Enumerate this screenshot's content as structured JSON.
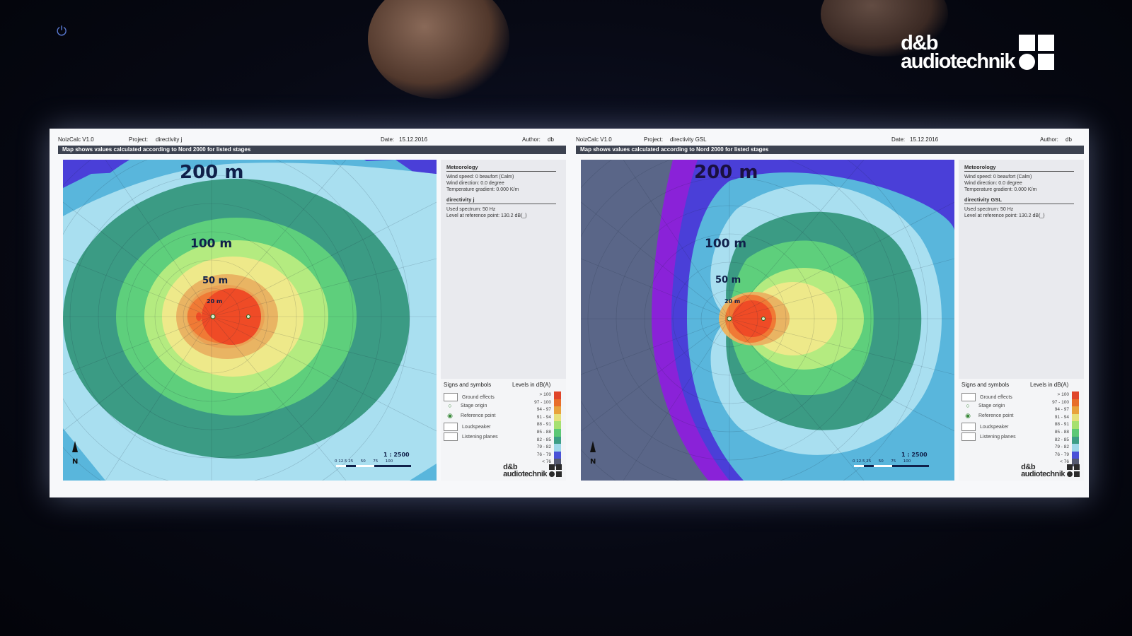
{
  "brand": {
    "line1": "d&b",
    "line2": "audiotechnik"
  },
  "sheets": [
    {
      "app": "NoizCalc V1.0",
      "project_label": "Project:",
      "project": "directivity j",
      "date_label": "Date:",
      "date": "15.12.2016",
      "author_label": "Author:",
      "author": "db",
      "banner": "Map shows values calculated according to Nord 2000 for listed stages",
      "map": {
        "label_200": "200 m",
        "label_100": "100 m",
        "label_50": "50 m",
        "label_20": "20 m",
        "scale_ratio": "1 : 2500",
        "scale_ticks": "0 12.5 25      50      75      100",
        "scale_unit": "m",
        "north": "N"
      },
      "meteorology": {
        "title": "Meteorology",
        "wind_speed": "Wind speed:  0 beaufort (Calm)",
        "wind_direction": "Wind direction:  0.0 degree",
        "temp_gradient": "Temperature gradient:  0.000 K/m"
      },
      "stage": {
        "title": "directivity j",
        "spectrum": "Used spectrum:  50 Hz",
        "level": "Level at reference point:  130.2 dB(_)"
      }
    },
    {
      "app": "NoizCalc V1.0",
      "project_label": "Project:",
      "project": "directivity GSL",
      "date_label": "Date:",
      "date": "15.12.2016",
      "author_label": "Author:",
      "author": "db",
      "banner": "Map shows values calculated according to Nord 2000 for listed stages",
      "map": {
        "label_200": "200 m",
        "label_100": "100 m",
        "label_50": "50 m",
        "label_20": "20 m",
        "scale_ratio": "1 : 2500",
        "scale_ticks": "0 12.5 25      50      75      100",
        "scale_unit": "m",
        "north": "N"
      },
      "meteorology": {
        "title": "Meteorology",
        "wind_speed": "Wind speed:  0 beaufort (Calm)",
        "wind_direction": "Wind direction:  0.0 degree",
        "temp_gradient": "Temperature gradient:  0.000 K/m"
      },
      "stage": {
        "title": "directivity GSL",
        "spectrum": "Used spectrum:  50 Hz",
        "level": "Level at reference point:  130.2 dB(_)"
      }
    }
  ],
  "signs": {
    "title": "Signs and symbols",
    "items": [
      "Ground effects",
      "Stage origin",
      "Reference point",
      "Loudspeaker",
      "Listening planes"
    ]
  },
  "levels": {
    "title": "Levels in dB(A)",
    "rows": [
      {
        "range": "> 100",
        "color": "#e0452a"
      },
      {
        "range": "97 - 100",
        "color": "#e86e2a"
      },
      {
        "range": "94 -  97",
        "color": "#e8a23c"
      },
      {
        "range": "91 -  94",
        "color": "#e6e07a"
      },
      {
        "range": "88 -  91",
        "color": "#a6e070"
      },
      {
        "range": "85 -  88",
        "color": "#5cc876"
      },
      {
        "range": "82 -  85",
        "color": "#3d9e86"
      },
      {
        "range": "79 -  82",
        "color": "#9fd8ea"
      },
      {
        "range": "76 -  79",
        "color": "#4a52d8"
      },
      {
        "range": "<  76",
        "color": "#555a70"
      }
    ]
  },
  "colors": {
    "zone_gt100": "#ef4b26",
    "zone_97": "#f07a35",
    "zone_94": "#e9b463",
    "zone_91": "#eee98a",
    "zone_88": "#b4eb80",
    "zone_85": "#5ecf7c",
    "zone_82": "#3b9b84",
    "zone_79": "#a9dff0",
    "zone_76": "#59b6dc",
    "zone_lt76": "#4a3fd8",
    "zone_purple": "#8a22d8",
    "zone_grey": "#5a6688"
  }
}
